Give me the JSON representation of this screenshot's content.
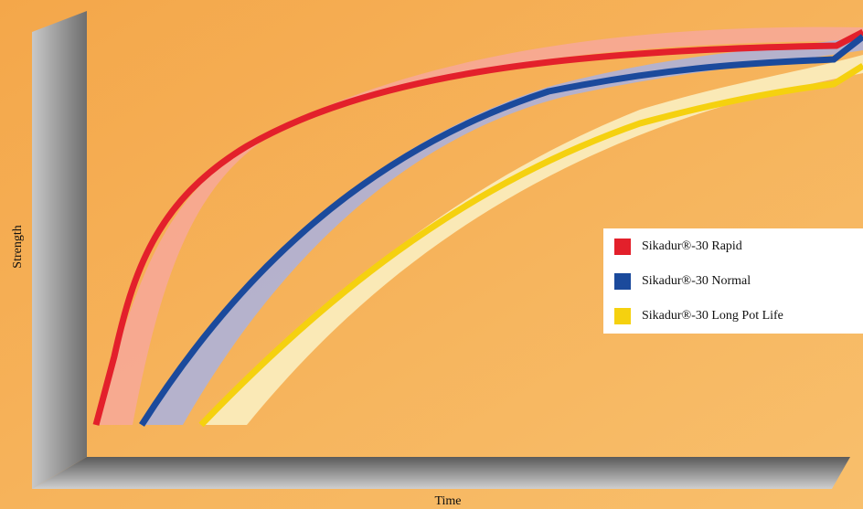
{
  "chart_data": {
    "type": "line",
    "xlabel": "Time",
    "ylabel": "Strength",
    "series": [
      {
        "name": "Sikadur®-30 Rapid",
        "color": "#e3202b"
      },
      {
        "name": "Sikadur®-30 Normal",
        "color": "#1b4a9c"
      },
      {
        "name": "Sikadur®-30 Long Pot Life",
        "color": "#f5d10f"
      }
    ]
  }
}
